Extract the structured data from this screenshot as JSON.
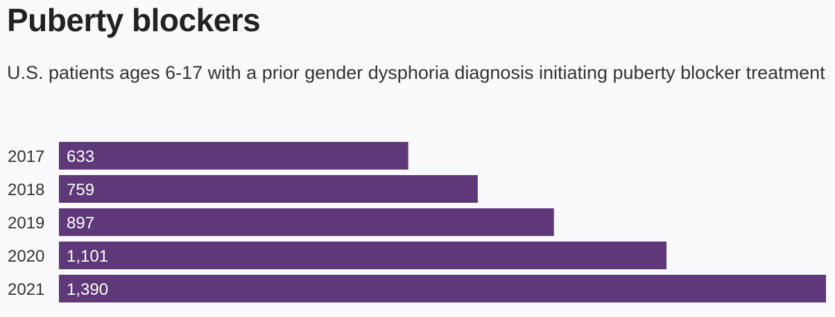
{
  "title": "Puberty blockers",
  "subtitle": "U.S. patients ages 6-17 with a prior gender dysphoria diagnosis initiating puberty blocker treatment",
  "colors": {
    "bar": "#5e3878",
    "background": "#faf9fb",
    "label_text": "#ffffff"
  },
  "chart_data": {
    "type": "bar",
    "orientation": "horizontal",
    "title": "Puberty blockers",
    "subtitle": "U.S. patients ages 6-17 with a prior gender dysphoria diagnosis initiating puberty blocker treatment",
    "categories": [
      "2017",
      "2018",
      "2019",
      "2020",
      "2021"
    ],
    "values": [
      633,
      759,
      897,
      1101,
      1390
    ],
    "value_labels": [
      "633",
      "759",
      "897",
      "1,101",
      "1,390"
    ],
    "xlabel": "",
    "ylabel": "",
    "xlim": [
      0,
      1390
    ],
    "grid": false,
    "legend": "none"
  }
}
